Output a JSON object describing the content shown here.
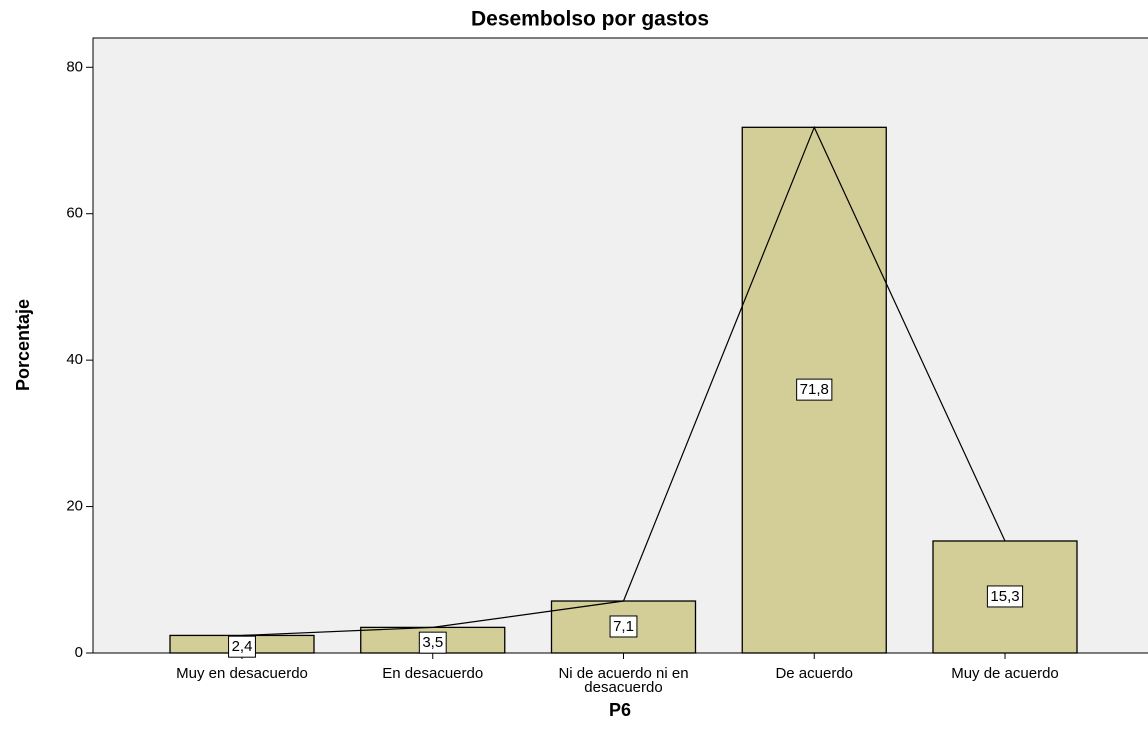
{
  "chart_data": {
    "type": "bar",
    "title": "Desembolso por gastos",
    "x_label": "P6",
    "y_label": "Porcentaje",
    "categories": [
      "Muy en desacuerdo",
      "En desacuerdo",
      "Ni de acuerdo ni en desacuerdo",
      "De acuerdo",
      "Muy de acuerdo"
    ],
    "values": [
      2.4,
      3.5,
      7.1,
      71.8,
      15.3
    ],
    "value_labels": [
      "2,4",
      "3,5",
      "7,1",
      "71,8",
      "15,3"
    ],
    "color": "#d3ce97",
    "line": true,
    "ylim": [
      0,
      84
    ],
    "yticks": [
      0,
      20,
      40,
      60,
      80
    ],
    "grid": false
  }
}
